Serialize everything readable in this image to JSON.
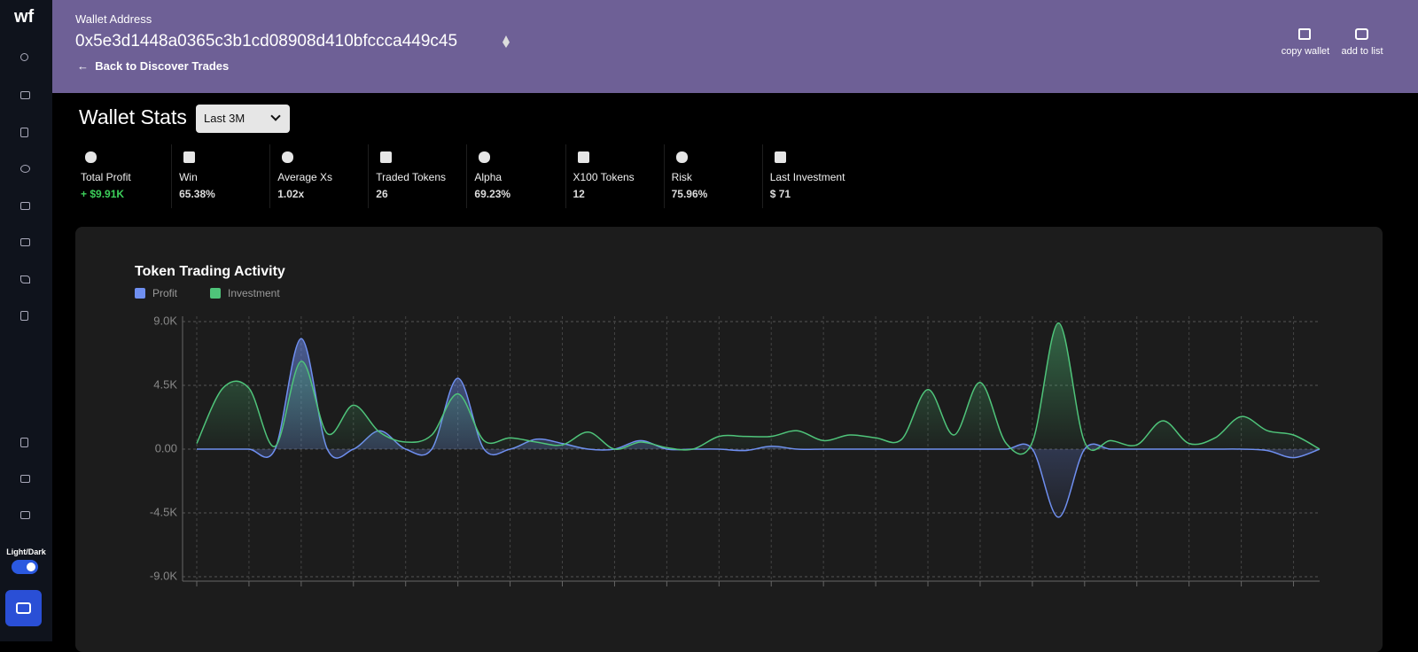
{
  "sidebar": {
    "logo": "wf",
    "toggle_label": "Light/Dark"
  },
  "header": {
    "label": "Wallet Address",
    "address": "0x5e3d1448a0365c3b1cd08908d410bfccca449c45",
    "back": "Back to Discover Trades",
    "copy": "copy wallet",
    "add": "add to list"
  },
  "stats": {
    "title": "Wallet Stats",
    "period": "Last 3M",
    "items": [
      {
        "label": "Total Profit",
        "value": "+ $9.91K"
      },
      {
        "label": "Win",
        "value": "65.38%"
      },
      {
        "label": "Average Xs",
        "value": "1.02x"
      },
      {
        "label": "Traded Tokens",
        "value": "26"
      },
      {
        "label": "Alpha",
        "value": "69.23%"
      },
      {
        "label": "X100 Tokens",
        "value": "12"
      },
      {
        "label": "Risk",
        "value": "75.96%"
      },
      {
        "label": "Last Investment",
        "value": "$ 71"
      }
    ]
  },
  "chart_data": {
    "type": "line",
    "title": "Token Trading Activity",
    "categories": [
      null,
      null,
      null,
      null,
      null,
      null,
      null,
      null,
      null,
      null,
      null,
      null,
      null,
      null,
      null,
      null,
      null,
      null,
      null,
      null,
      null,
      null,
      null,
      null,
      null,
      null,
      null,
      null,
      null,
      null,
      null,
      null,
      null,
      null,
      null,
      null,
      null,
      null,
      null,
      null,
      null,
      null,
      null,
      null
    ],
    "series": [
      {
        "name": "Profit",
        "color": "#6f8ff0",
        "values": [
          0,
          0,
          0,
          0,
          7800,
          0,
          0,
          1300,
          0,
          0,
          5000,
          0,
          0,
          700,
          400,
          0,
          0,
          600,
          0,
          0,
          0,
          -100,
          200,
          0,
          0,
          0,
          0,
          0,
          0,
          0,
          0,
          0,
          0,
          -4800,
          0,
          0,
          0,
          0,
          0,
          0,
          0,
          -100,
          -600,
          0
        ]
      },
      {
        "name": "Investment",
        "color": "#4fc47a",
        "values": [
          400,
          4300,
          4300,
          200,
          6200,
          1100,
          3100,
          1200,
          500,
          1000,
          3900,
          600,
          800,
          500,
          300,
          1200,
          0,
          500,
          100,
          0,
          900,
          900,
          900,
          1300,
          600,
          1000,
          800,
          700,
          4200,
          1000,
          4700,
          400,
          500,
          8900,
          500,
          600,
          300,
          2000,
          400,
          800,
          2300,
          1300,
          1000,
          0
        ]
      }
    ],
    "ylim": [
      -9000,
      9000
    ],
    "yticks": [
      {
        "value": 9000,
        "label": "9.0K"
      },
      {
        "value": 4500,
        "label": "4.5K"
      },
      {
        "value": 0,
        "label": "0.00"
      },
      {
        "value": -4500,
        "label": "-4.5K"
      },
      {
        "value": -9000,
        "label": "-9.0K"
      }
    ],
    "grid": true,
    "legend": "top-left"
  }
}
